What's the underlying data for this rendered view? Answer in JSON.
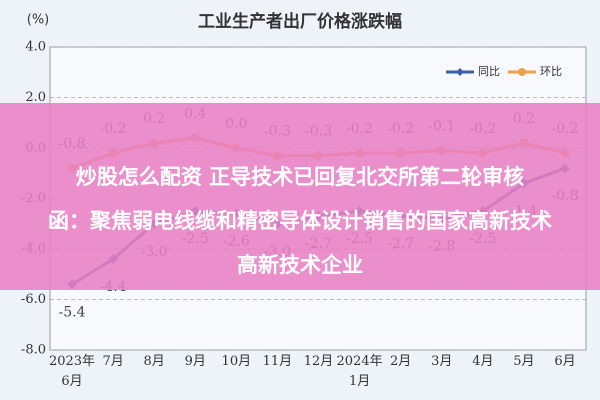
{
  "chart_data": {
    "type": "line",
    "title": "工业生产者出厂价格涨跌幅",
    "y_label": "(%)",
    "categories": [
      "2023年\n6月",
      "7月",
      "8月",
      "9月",
      "10月",
      "11月",
      "12月",
      "2024年\n1月",
      "2月",
      "3月",
      "4月",
      "5月",
      "6月"
    ],
    "series": [
      {
        "name": "同比",
        "color": "#3b5fa8",
        "marker": "diamond",
        "values": [
          -5.4,
          -4.4,
          -3.0,
          -2.5,
          -2.6,
          -3.0,
          -2.7,
          -2.5,
          -2.7,
          -2.8,
          -2.5,
          -1.4,
          -0.8
        ],
        "value_labels": [
          "-5.4",
          "-4.4",
          "-3.0",
          "-2.5",
          "-2.6",
          "-3.0",
          "-2.7",
          "-2.5",
          "-2.7",
          "-2.8",
          "-2.5",
          "-1.4",
          "-0.8"
        ]
      },
      {
        "name": "环比",
        "color": "#f0a04b",
        "marker": "circle",
        "values": [
          -0.8,
          -0.2,
          0.2,
          0.4,
          0.0,
          -0.3,
          -0.3,
          -0.2,
          -0.2,
          -0.1,
          -0.2,
          0.2,
          -0.2
        ],
        "value_labels": [
          "-0.8",
          "-0.2",
          "0.2",
          "0.4",
          "0.0",
          "-0.3",
          "-0.3",
          "-0.2",
          "-0.2",
          "-0.1",
          "-0.2",
          "0.2",
          "-0.2"
        ]
      }
    ],
    "ylim": [
      -8,
      4
    ],
    "yticks": [
      {
        "value": 4,
        "label": "4.0"
      },
      {
        "value": 2,
        "label": "2.0"
      },
      {
        "value": 0,
        "label": "0.0"
      },
      {
        "value": -2,
        "label": "-2.0"
      },
      {
        "value": -4,
        "label": "-4.0"
      },
      {
        "value": -6,
        "label": "-6.0"
      },
      {
        "value": -8,
        "label": "-8.0"
      }
    ],
    "grid": true,
    "legend": "top-right"
  },
  "overlay": {
    "lines": [
      "炒股怎么配资 正导技术已回复北交所第二轮审核",
      "函：聚焦弱电线缆和精密导体设计销售的国家高新技术",
      "高新技术企业"
    ]
  }
}
